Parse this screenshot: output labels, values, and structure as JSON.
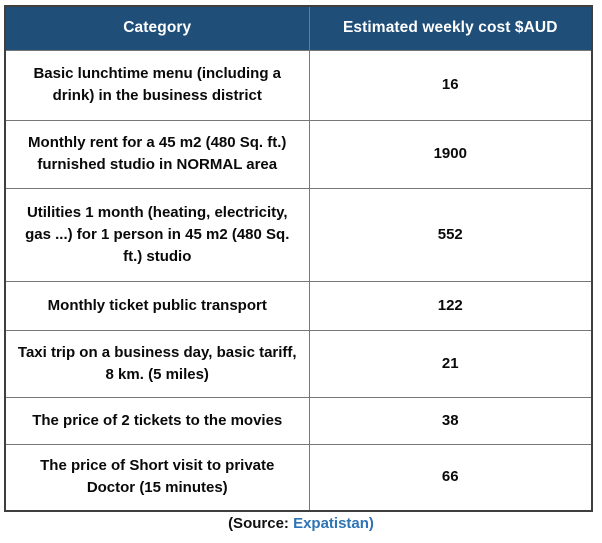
{
  "chart_data": {
    "type": "table",
    "columns": [
      "Category",
      "Estimated weekly cost $AUD"
    ],
    "rows": [
      [
        "Basic lunchtime menu (including a drink) in the business district",
        "16"
      ],
      [
        "Monthly rent for a 45 m2 (480 Sq. ft.) furnished studio in NORMAL area",
        "1900"
      ],
      [
        "Utilities 1 month (heating, electricity, gas ...) for 1 person in 45 m2 (480 Sq. ft.) studio",
        "552"
      ],
      [
        "Monthly ticket public transport",
        "122"
      ],
      [
        "Taxi trip on a business day, basic tariff, 8 km. (5 miles)",
        "21"
      ],
      [
        "The price of 2 tickets to the movies",
        "38"
      ],
      [
        "The price of Short visit to private Doctor (15 minutes)",
        "66"
      ]
    ],
    "title": "",
    "legend": "none",
    "grid": "table borders on"
  },
  "footer": {
    "source_prefix": "(Source: ",
    "source_link": "Expatistan)"
  },
  "colors": {
    "header_bg": "#1F4E79",
    "header_text": "#FFFFFF",
    "body_text": "#0A0A0A",
    "link_blue": "#2E74B5",
    "inner_border": "#777777",
    "outer_border": "#3F3F3F"
  }
}
